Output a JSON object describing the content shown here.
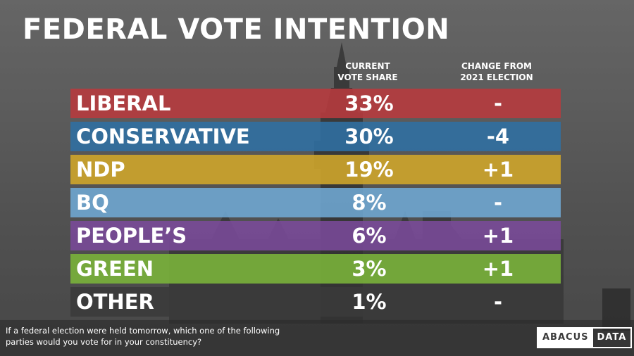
{
  "title": "FEDERAL VOTE INTENTION",
  "columns": {
    "share_line1": "CURRENT",
    "share_line2": "VOTE SHARE",
    "change_line1": "CHANGE FROM",
    "change_line2": "2021 ELECTION"
  },
  "chart_data": {
    "type": "table",
    "title": "FEDERAL VOTE INTENTION",
    "columns": [
      "CURRENT VOTE SHARE",
      "CHANGE FROM 2021 ELECTION"
    ],
    "rows": [
      {
        "party": "LIBERAL",
        "share": "33%",
        "share_value": 33,
        "change": "-",
        "color": "#b83a3d"
      },
      {
        "party": "CONSERVATIVE",
        "share": "30%",
        "share_value": 30,
        "change": "-4",
        "color": "#2f6fa3"
      },
      {
        "party": "NDP",
        "share": "19%",
        "share_value": 19,
        "change": "+1",
        "color": "#d2a72a"
      },
      {
        "party": "BQ",
        "share": "8%",
        "share_value": 8,
        "change": "-",
        "color": "#6fa8d4"
      },
      {
        "party": "PEOPLE’S",
        "share": "6%",
        "share_value": 6,
        "change": "+1",
        "color": "#7a4a9a"
      },
      {
        "party": "GREEN",
        "share": "3%",
        "share_value": 3,
        "change": "+1",
        "color": "#7bb53a"
      },
      {
        "party": "OTHER",
        "share": "1%",
        "share_value": 1,
        "change": "-",
        "color": "#3a3a3a"
      }
    ]
  },
  "footnote": {
    "line1": "If a federal election were held tomorrow, which one of the following",
    "line2": "parties would you vote for in your constituency?"
  },
  "logo": {
    "part1": "ABACUS",
    "part2": "DATA"
  }
}
